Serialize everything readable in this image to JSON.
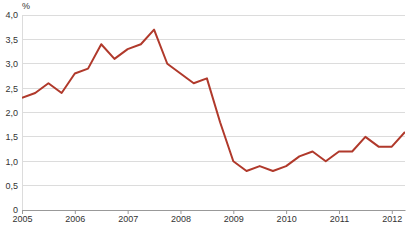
{
  "chart_data": {
    "type": "line",
    "ylabel": "%",
    "x": [
      2005,
      2005.25,
      2005.5,
      2005.75,
      2006,
      2006.25,
      2006.5,
      2006.75,
      2007,
      2007.25,
      2007.5,
      2007.75,
      2008,
      2008.25,
      2008.5,
      2008.75,
      2009,
      2009.25,
      2009.5,
      2009.75,
      2010,
      2010.25,
      2010.5,
      2010.75,
      2011,
      2011.25,
      2011.5,
      2011.75,
      2012,
      2012.25
    ],
    "values": [
      2.3,
      2.4,
      2.6,
      2.4,
      2.8,
      2.9,
      3.4,
      3.1,
      3.3,
      3.4,
      3.7,
      3.0,
      2.8,
      2.6,
      2.7,
      1.8,
      1.0,
      0.8,
      0.9,
      0.8,
      0.9,
      1.1,
      1.2,
      1.0,
      1.2,
      1.2,
      1.5,
      1.3,
      1.3,
      1.6
    ],
    "color": "#b0392b",
    "xlim": [
      2005,
      2012.25
    ],
    "xticks": [
      2005,
      2006,
      2007,
      2008,
      2009,
      2010,
      2011,
      2012
    ],
    "ylim": [
      0,
      4
    ],
    "yticks": [
      0,
      {
        "value": 0.5,
        "label": "0,5"
      },
      {
        "value": 1,
        "label": "1,0"
      },
      {
        "value": 1.5,
        "label": "1,5"
      },
      {
        "value": 2,
        "label": "2,0"
      },
      {
        "value": 2.5,
        "label": "2,5"
      },
      {
        "value": 3,
        "label": "3,0"
      },
      {
        "value": 3.5,
        "label": "3,5"
      },
      {
        "value": 4,
        "label": "4,0"
      }
    ],
    "grid": true
  }
}
